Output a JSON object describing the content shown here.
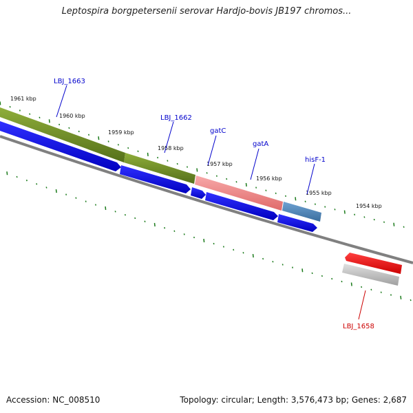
{
  "title": "Leptospira borgpetersenii serovar Hardjo-bovis JB197 chromos...",
  "footer": {
    "accession": "Accession: NC_008510",
    "summary": "Topology: circular; Length: 3,576,473 bp; Genes: 2,687"
  },
  "colors": {
    "label_blue": "#0000cc",
    "label_red": "#cc0000",
    "tick_green": "#1a7a1a",
    "cds_blue": "#0000ee",
    "gene_olive": "#6b8e23",
    "gene_pink": "#f08080",
    "gene_steel": "#4682b4",
    "gene_red": "#ee0000",
    "gene_gray": "#b0b0b0",
    "backbone": "#808080"
  },
  "scale_labels": [
    "1961 kbp",
    "1960 kbp",
    "1959 kbp",
    "1958 kbp",
    "1957 kbp",
    "1956 kbp",
    "1955 kbp",
    "1954 kbp"
  ],
  "gene_labels": [
    {
      "name": "LBJ_1663",
      "color": "blue"
    },
    {
      "name": "LBJ_1662",
      "color": "blue"
    },
    {
      "name": "gatC",
      "color": "blue"
    },
    {
      "name": "gatA",
      "color": "blue"
    },
    {
      "name": "hisF-1",
      "color": "blue"
    },
    {
      "name": "LBJ_1658",
      "color": "red"
    }
  ]
}
